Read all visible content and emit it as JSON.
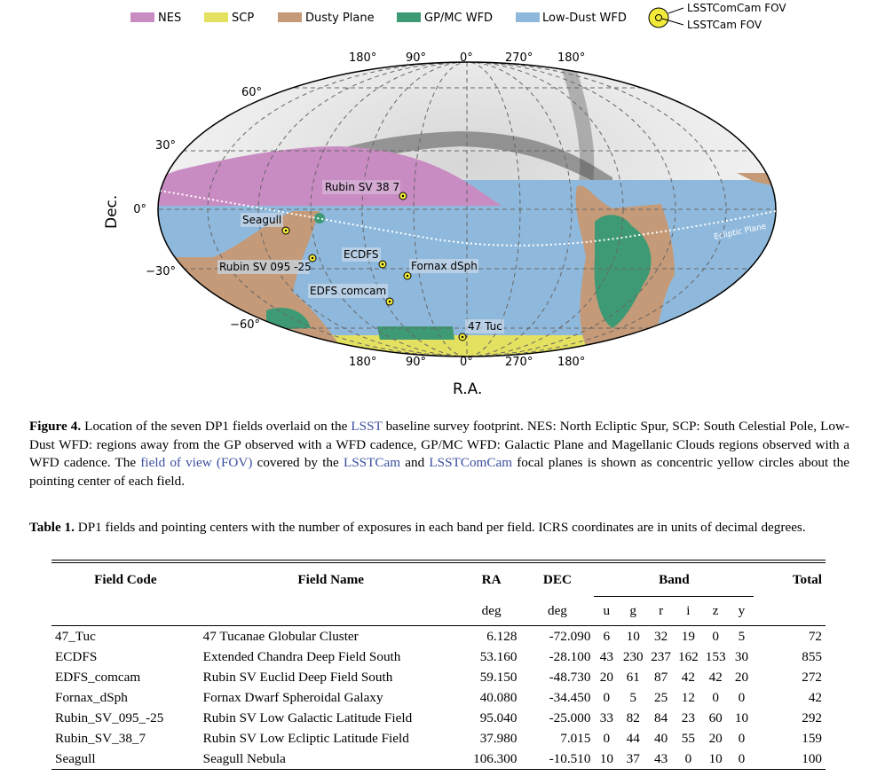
{
  "legend": {
    "items": [
      {
        "label": "NES",
        "color": "#c98cc2"
      },
      {
        "label": "SCP",
        "color": "#e4e160"
      },
      {
        "label": "Dusty Plane",
        "color": "#c49a78"
      },
      {
        "label": "GP/MC WFD",
        "color": "#3e9a74"
      },
      {
        "label": "Low-Dust WFD",
        "color": "#8fb9dc"
      }
    ],
    "fov_outer": "LSSTComCam FOV",
    "fov_inner": "LSSTCam FOV"
  },
  "map": {
    "top_ra_ticks": [
      "180°",
      "90°",
      "0°",
      "270°",
      "180°"
    ],
    "bottom_ra_ticks": [
      "180°",
      "90°",
      "0°",
      "270°",
      "180°"
    ],
    "dec_ticks": [
      "60°",
      "30°",
      "0°",
      "−30°",
      "−60°"
    ],
    "dec_label": "Dec.",
    "ra_label": "R.A.",
    "ecliptic_label": "Ecliptic Plane",
    "fields": [
      {
        "label": "Rubin SV 38 7"
      },
      {
        "label": "Seagull"
      },
      {
        "label": "ECDFS"
      },
      {
        "label": "Fornax dSph"
      },
      {
        "label": "Rubin SV 095 -25"
      },
      {
        "label": "EDFS comcam"
      },
      {
        "label": "47 Tuc"
      }
    ]
  },
  "figure_caption": {
    "label": "Figure 4.",
    "t1": " Location of the seven DP1 fields overlaid on the ",
    "l1": "LSST",
    "t2": " baseline survey footprint. NES: North Ecliptic Spur, SCP: South Celestial Pole, Low-Dust WFD: regions away from the GP observed with a WFD cadence, GP/MC WFD: Galactic Plane and Magellanic Clouds regions observed with a WFD cadence. The ",
    "l2": "field of view (FOV)",
    "t3": " covered by the ",
    "l3": "LSSTCam",
    "t4": " and ",
    "l4": "LSSTComCam",
    "t5": " focal planes is shown as concentric yellow circles about the pointing center of each field."
  },
  "table_caption": {
    "label": "Table 1.",
    "text": " DP1 fields and pointing centers with the number of exposures in each band per field. ICRS coordinates are in units of decimal degrees."
  },
  "table": {
    "headers": {
      "code": "Field Code",
      "name": "Field Name",
      "ra": "RA",
      "dec": "DEC",
      "band": "Band",
      "total": "Total"
    },
    "units": {
      "ra": "deg",
      "dec": "deg",
      "bands": [
        "u",
        "g",
        "r",
        "i",
        "z",
        "y"
      ]
    },
    "rows": [
      {
        "code": "47_Tuc",
        "name": "47 Tucanae Globular Cluster",
        "ra": "6.128",
        "dec": "-72.090",
        "b": [
          "6",
          "10",
          "32",
          "19",
          "0",
          "5"
        ],
        "total": "72"
      },
      {
        "code": "ECDFS",
        "name": "Extended Chandra Deep Field South",
        "ra": "53.160",
        "dec": "-28.100",
        "b": [
          "43",
          "230",
          "237",
          "162",
          "153",
          "30"
        ],
        "total": "855"
      },
      {
        "code": "EDFS_comcam",
        "name": "Rubin SV Euclid Deep Field South",
        "ra": "59.150",
        "dec": "-48.730",
        "b": [
          "20",
          "61",
          "87",
          "42",
          "42",
          "20"
        ],
        "total": "272"
      },
      {
        "code": "Fornax_dSph",
        "name": "Fornax Dwarf Spheroidal Galaxy",
        "ra": "40.080",
        "dec": "-34.450",
        "b": [
          "0",
          "5",
          "25",
          "12",
          "0",
          "0"
        ],
        "total": "42"
      },
      {
        "code": "Rubin_SV_095_-25",
        "name": "Rubin SV Low Galactic Latitude Field",
        "ra": "95.040",
        "dec": "-25.000",
        "b": [
          "33",
          "82",
          "84",
          "23",
          "60",
          "10"
        ],
        "total": "292"
      },
      {
        "code": "Rubin_SV_38_7",
        "name": "Rubin SV Low Ecliptic Latitude Field",
        "ra": "37.980",
        "dec": "7.015",
        "b": [
          "0",
          "44",
          "40",
          "55",
          "20",
          "0"
        ],
        "total": "159"
      },
      {
        "code": "Seagull",
        "name": "Seagull Nebula",
        "ra": "106.300",
        "dec": "-10.510",
        "b": [
          "10",
          "37",
          "43",
          "0",
          "10",
          "0"
        ],
        "total": "100"
      }
    ]
  }
}
